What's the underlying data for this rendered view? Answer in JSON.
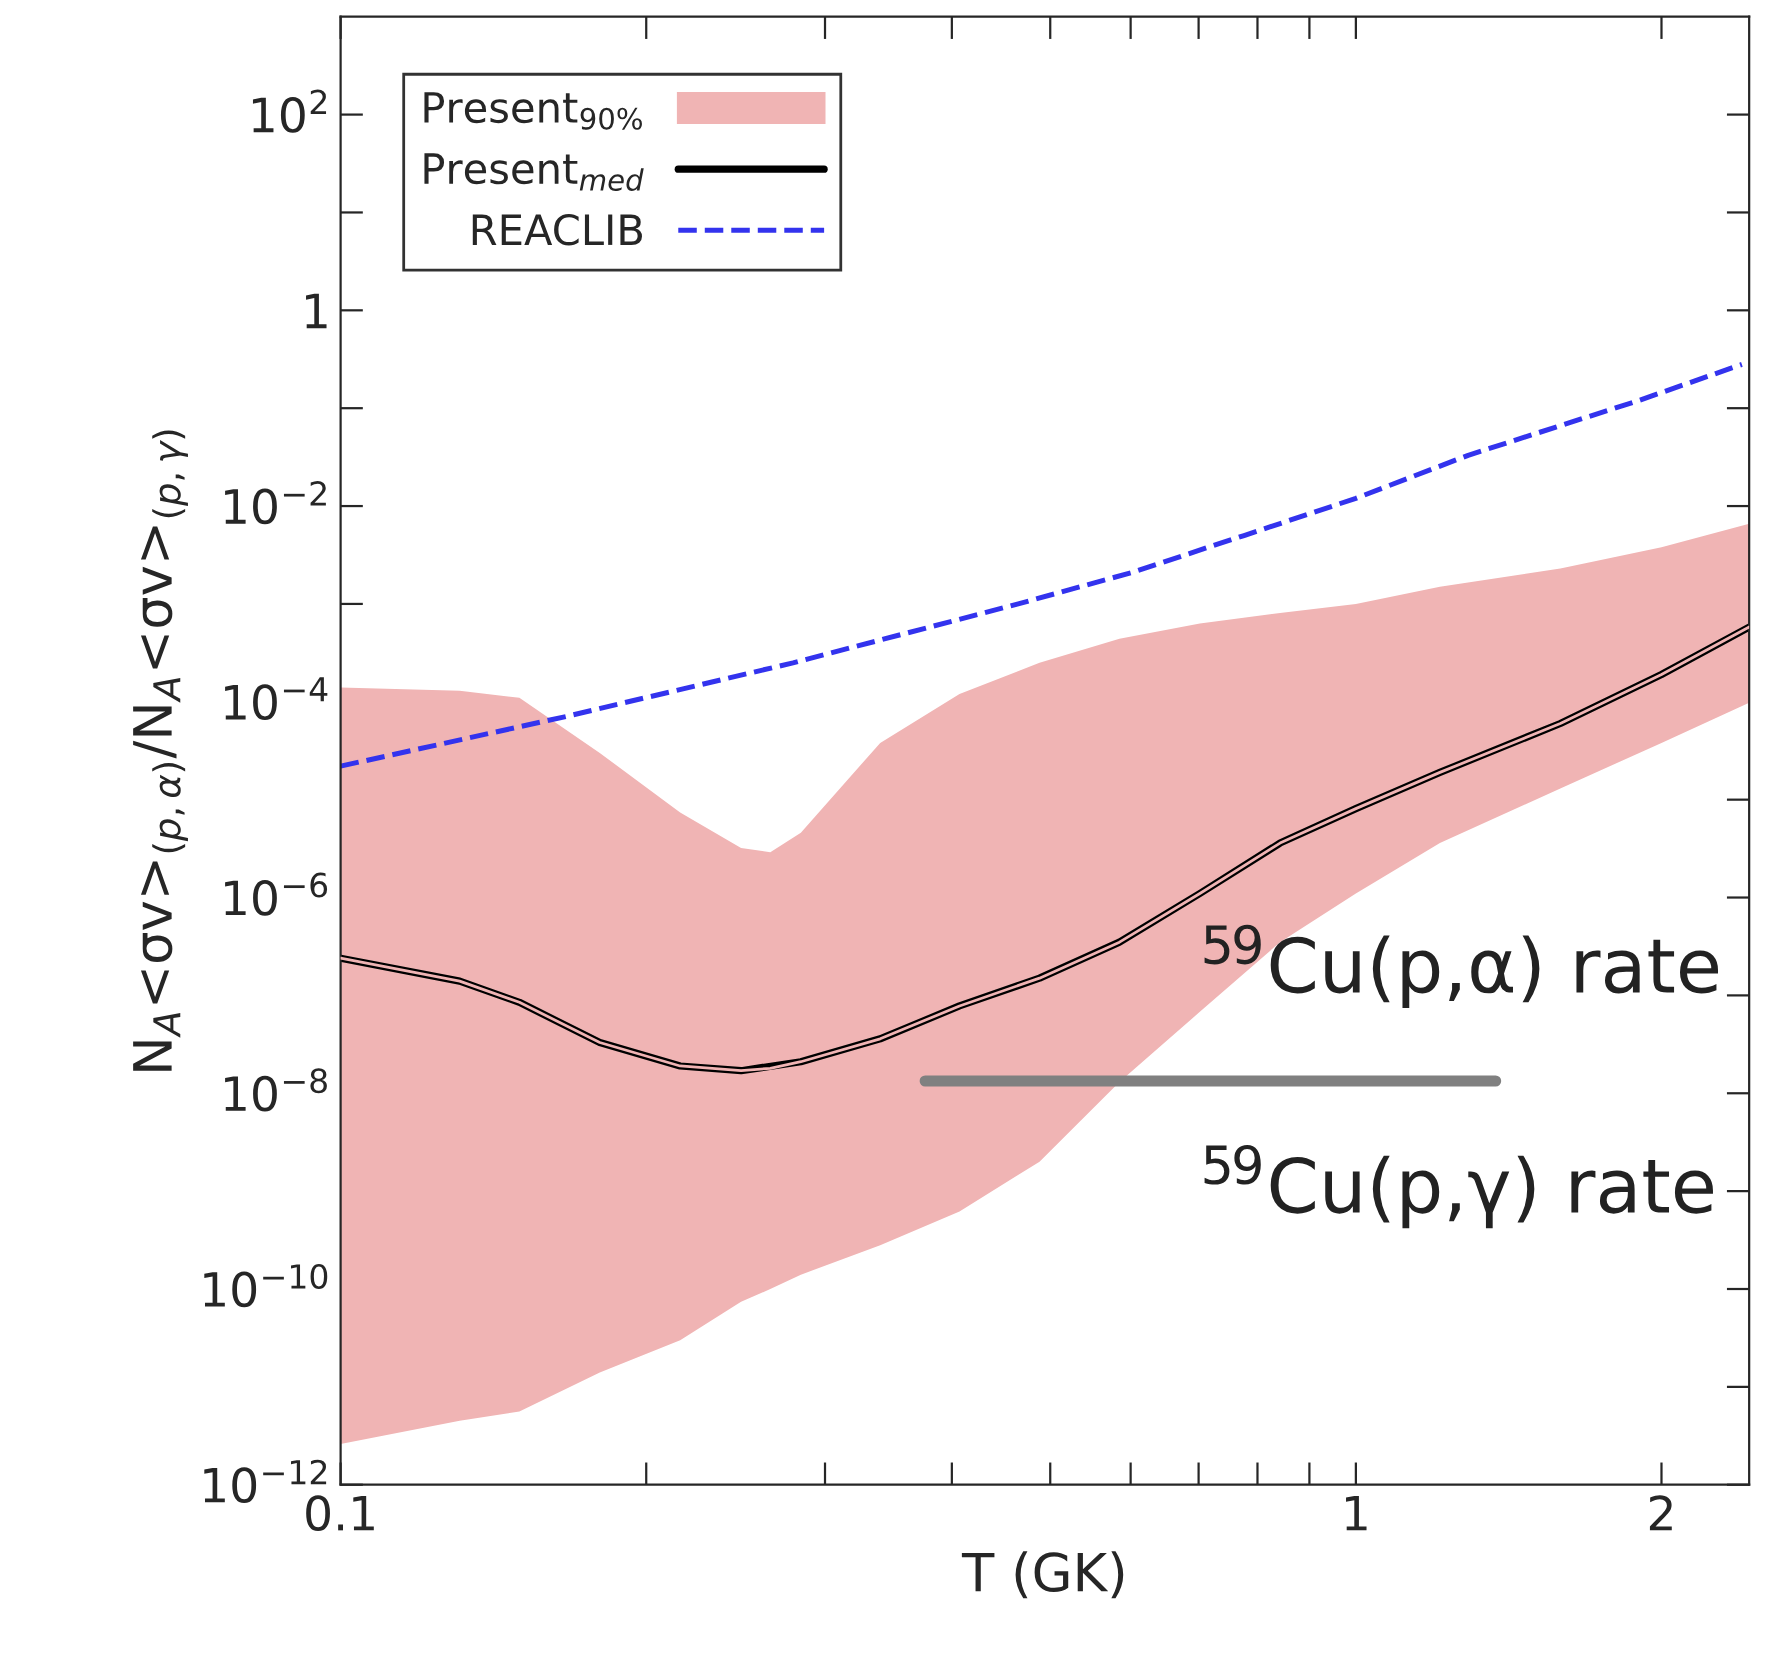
{
  "chart_data": {
    "type": "line",
    "xlabel": "T (GK)",
    "ylabel": "N$_{A}$<σv>$_{(p,α)}$/N$_{A}$<σv>$_{(p,γ)}$",
    "log": "xy",
    "grid": false,
    "legend": "top left",
    "xlim": [
      0.1,
      2.44
    ],
    "xticks": [
      0.1,
      {
        "value": 0.2,
        "label": null
      },
      {
        "value": 0.3,
        "label": null
      },
      {
        "value": 0.4,
        "label": null
      },
      {
        "value": 0.5,
        "label": null
      },
      {
        "value": 0.6,
        "label": null
      },
      {
        "value": 0.7,
        "label": null
      },
      {
        "value": 0.8,
        "label": null
      },
      {
        "value": 0.9,
        "label": null
      },
      1,
      2
    ],
    "ylim": [
      1e-12,
      1000.0
    ],
    "yticks": [
      {
        "value": 1e-12,
        "label": "10$^{−12}$"
      },
      {
        "value": 1e-11,
        "label": null
      },
      {
        "value": 1e-10,
        "label": "10$^{−10}$"
      },
      {
        "value": 1e-09,
        "label": null
      },
      {
        "value": 1e-08,
        "label": "10$^{−8}$"
      },
      {
        "value": 1e-07,
        "label": null
      },
      {
        "value": 1e-06,
        "label": "10$^{−6}$"
      },
      {
        "value": 1e-05,
        "label": null
      },
      {
        "value": 0.0001,
        "label": "10$^{−4}$"
      },
      {
        "value": 0.001,
        "label": null
      },
      {
        "value": 0.01,
        "label": "10$^{−2}$"
      },
      {
        "value": 0.1,
        "label": null
      },
      1,
      {
        "value": 10,
        "label": null
      },
      {
        "value": 100,
        "label": "10$^{2}$"
      }
    ],
    "series": [
      {
        "name": "Present$_{90%}$",
        "color": "#f0b4b4",
        "x": [
          0.1,
          0.131,
          0.15,
          0.18,
          0.216,
          0.248,
          0.265,
          0.284,
          0.34,
          0.407,
          0.488,
          0.585,
          0.702,
          0.842,
          1.0,
          1.21,
          1.59,
          2.0,
          2.44
        ],
        "values": [
          2.4e-07,
          1.4e-07,
          8.5e-08,
          3.3e-08,
          1.9e-08,
          1.7e-08,
          1.8e-08,
          2.1e-08,
          3.6e-08,
          7.8e-08,
          1.5e-07,
          3.5e-07,
          1.1e-06,
          3.6e-06,
          8.1e-06,
          1.9e-05,
          6e-05,
          0.00019,
          0.00058
        ],
        "lower": [
          2.6e-12,
          4.5e-12,
          5.6e-12,
          1.4e-11,
          3e-11,
          7.4e-11,
          1e-10,
          1.4e-10,
          2.8e-10,
          6.2e-10,
          2e-09,
          1.3e-08,
          6.8e-08,
          3.5e-07,
          1.1e-06,
          3.6e-06,
          1.3e-05,
          3.8e-05,
          9.8e-05
        ],
        "upper": [
          0.00014,
          0.00013,
          0.00011,
          3e-05,
          7.4e-06,
          3.2e-06,
          2.9e-06,
          4.6e-06,
          3.8e-05,
          0.00012,
          0.00025,
          0.00044,
          0.00063,
          0.00081,
          0.001,
          0.0015,
          0.0023,
          0.0038,
          0.0066
        ]
      },
      {
        "name": "Present$_{med}$",
        "type": "line",
        "color": "#000000",
        "line_style": "solid",
        "x": [
          0.1,
          0.131,
          0.15,
          0.18,
          0.216,
          0.248,
          0.284,
          0.34,
          0.407,
          0.488,
          0.585,
          0.702,
          0.842,
          1.0,
          1.21,
          1.59,
          2.0,
          2.44
        ],
        "values": [
          2.4e-07,
          1.4e-07,
          8.5e-08,
          3.3e-08,
          1.9e-08,
          1.7e-08,
          2.1e-08,
          3.6e-08,
          7.8e-08,
          1.5e-07,
          3.5e-07,
          1.1e-06,
          3.6e-06,
          8.1e-06,
          1.9e-05,
          6e-05,
          0.00019,
          0.00058
        ]
      },
      {
        "name": "REACLIB",
        "type": "line",
        "color": "#3333ee",
        "line_style": "dashed",
        "x": [
          0.1,
          0.167,
          0.279,
          0.465,
          0.602,
          0.776,
          1.0,
          1.29,
          1.9,
          2.4
        ],
        "values": [
          2.2e-05,
          7.1e-05,
          0.00025,
          0.001,
          0.0021,
          0.005,
          0.012,
          0.033,
          0.12,
          0.28
        ]
      }
    ],
    "annotations": [
      "$^{59}$Cu(p,α) rate",
      "$^{59}$Cu(p,γ) rate"
    ]
  }
}
